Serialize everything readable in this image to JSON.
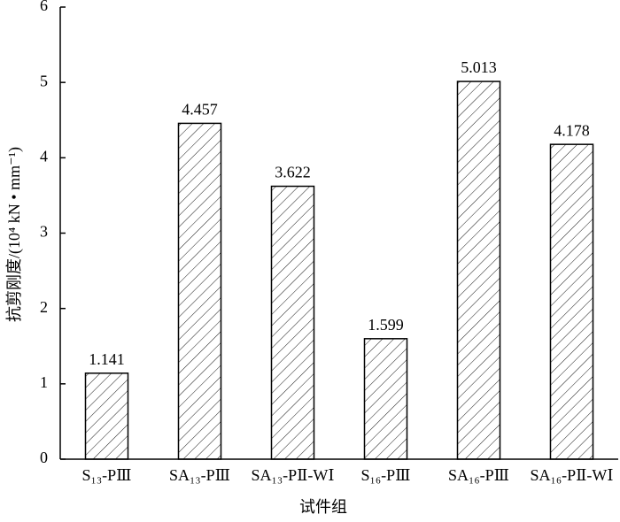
{
  "chart_data": {
    "type": "bar",
    "x_label": "试件组",
    "y_label": "抗剪刚度/(10⁴ kN • mm⁻¹)",
    "categories": [
      "S₁₃-PⅢ",
      "SA₁₃-PⅢ",
      "SA₁₃-PⅡ-WⅠ",
      "S₁₆-PⅢ",
      "SA₁₆-PⅢ",
      "SA₁₆-PⅡ-WⅠ"
    ],
    "values": [
      1.141,
      4.457,
      3.622,
      1.599,
      5.013,
      4.178
    ],
    "color": "#000000",
    "ylim": [
      0,
      6
    ],
    "yticks": [
      0,
      1,
      2,
      3,
      4,
      5,
      6
    ],
    "grid": false
  }
}
